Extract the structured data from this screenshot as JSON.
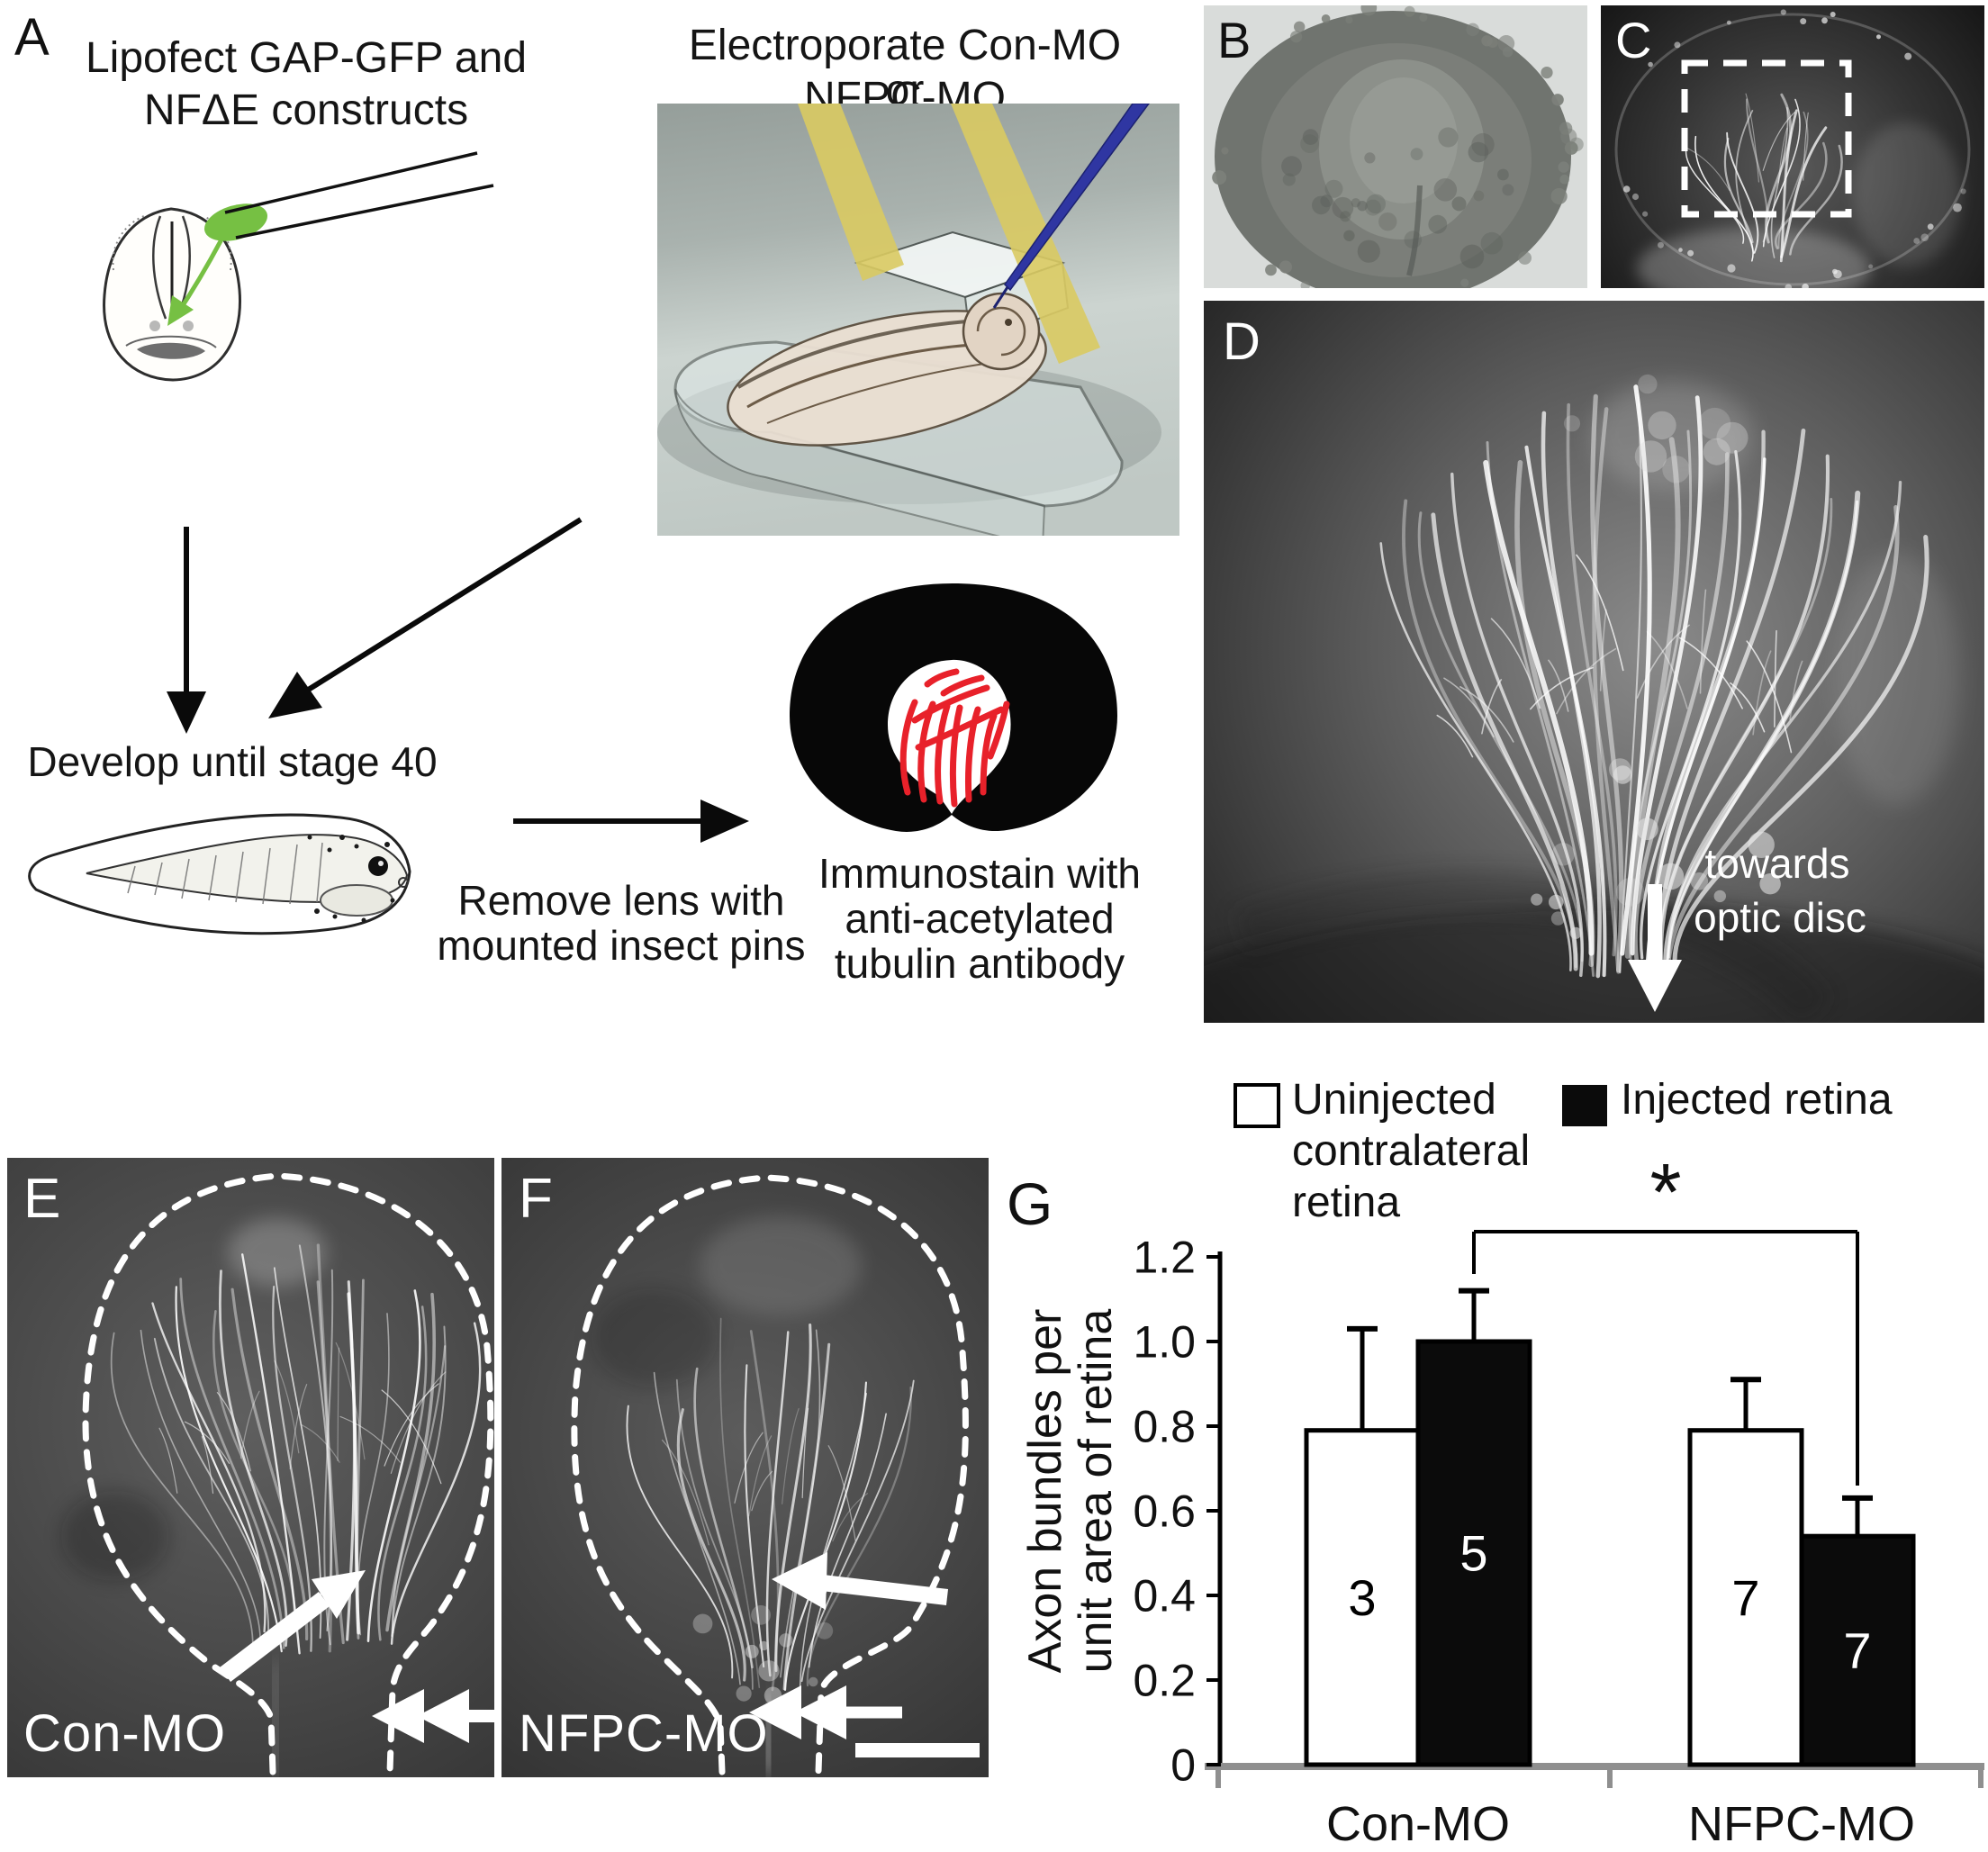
{
  "figure": {
    "panels": {
      "a": {
        "label": "A",
        "lipofect_lines": [
          "Lipofect GAP-GFP and",
          "NFΔE constructs"
        ],
        "electroporate_lines": [
          "Electroporate Con-MO or",
          "NFPC-MO"
        ],
        "develop_line": "Develop until stage 40",
        "remove_lines": [
          "Remove lens with",
          "mounted insect pins"
        ],
        "immunostain_lines": [
          "Immunostain with",
          "anti-acetylated",
          "tubulin antibody"
        ]
      },
      "b": {
        "label": "B"
      },
      "c": {
        "label": "C"
      },
      "d": {
        "label": "D",
        "annotation_lines": [
          "towards",
          "optic disc"
        ]
      },
      "e": {
        "label": "E",
        "tag": "Con-MO"
      },
      "f": {
        "label": "F",
        "tag": "NFPC-MO"
      },
      "g": {
        "label": "G"
      }
    },
    "colors": {
      "construct_green": "#76c043",
      "axon_red": "#e8212a",
      "electrode_yellow": "#d9ca62",
      "needle_blue": "#2f36a2",
      "bar_black": "#0b0b0b",
      "axis_gray": "#8f8f8f"
    }
  },
  "chart_data": {
    "type": "bar",
    "title": "",
    "categories": [
      "Con-MO",
      "NFPC-MO"
    ],
    "series": [
      {
        "name": "Uninjected contralateral retina",
        "legend_lines": [
          "Uninjected",
          "contralateral",
          "retina"
        ],
        "fill": "white",
        "values": [
          0.79,
          0.79
        ],
        "errors_plus": [
          0.24,
          0.12
        ],
        "n_labels": [
          "3",
          "7"
        ]
      },
      {
        "name": "Injected retina",
        "legend_lines": [
          "Injected retina"
        ],
        "fill": "black",
        "values": [
          1.0,
          0.54
        ],
        "errors_plus": [
          0.12,
          0.09
        ],
        "n_labels": [
          "5",
          "7"
        ]
      }
    ],
    "ylabel_lines": [
      "Axon bundles per",
      "unit area of retina"
    ],
    "yticks": [
      0,
      0.2,
      0.4,
      0.6,
      0.8,
      1.0,
      1.2
    ],
    "ytick_labels": [
      "0",
      "0.2",
      "0.4",
      "0.6",
      "0.8",
      "1.0",
      "1.2"
    ],
    "ylim": [
      0,
      1.2
    ],
    "grid": false,
    "legend_position": "top",
    "significance": {
      "symbol": "*",
      "between": [
        "Con-MO Injected retina",
        "NFPC-MO Injected retina"
      ]
    }
  }
}
